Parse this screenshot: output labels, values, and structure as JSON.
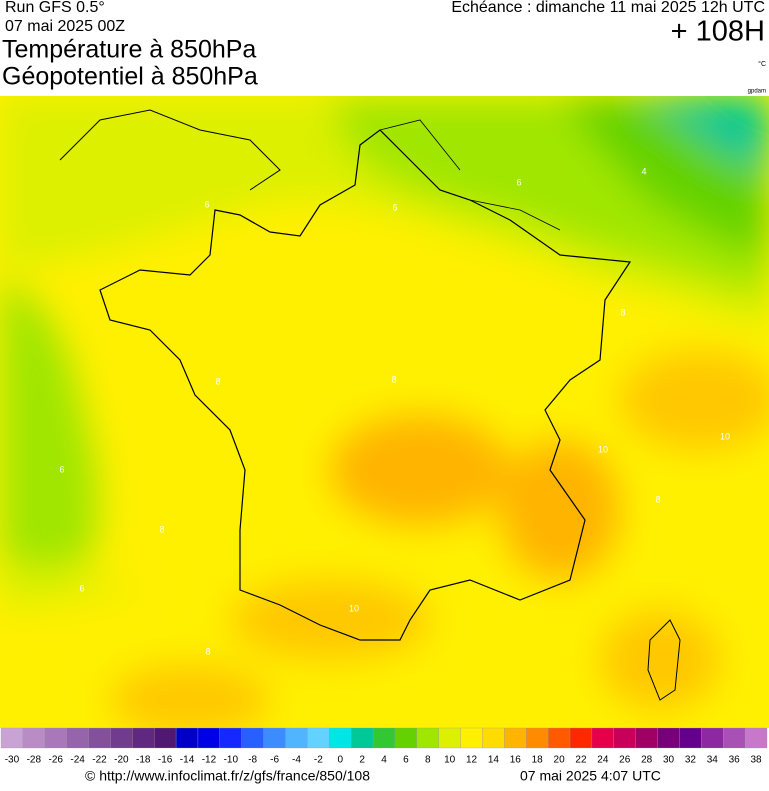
{
  "header": {
    "run": "Run GFS 0.5°",
    "run_date": "07 mai 2025 00Z",
    "valid": "Echéance : dimanche 11 mai 2025 12h UTC",
    "lead": "+ 108H",
    "title_1": "Température à 850hPa",
    "title_2": "Géopotentiel à 850hPa",
    "unit": "°C",
    "credit": "gpdam"
  },
  "map": {
    "contour_labels": [
      6,
      6,
      4,
      6,
      8,
      8,
      8,
      6,
      8,
      10,
      10,
      10,
      8,
      6,
      8
    ]
  },
  "scale": {
    "labels": [
      -30,
      -28,
      -26,
      -24,
      -22,
      -20,
      -18,
      -16,
      -14,
      -12,
      -10,
      -8,
      -6,
      -4,
      -2,
      0,
      2,
      4,
      6,
      8,
      10,
      12,
      14,
      16,
      18,
      20,
      22,
      24,
      26,
      28,
      30,
      32,
      34,
      36,
      38
    ],
    "colors": [
      "#c9a3d3",
      "#b98cc6",
      "#a878b8",
      "#9664aa",
      "#84509c",
      "#723c8e",
      "#602880",
      "#501870",
      "#0000c8",
      "#0000e6",
      "#1428ff",
      "#2860ff",
      "#3c8cff",
      "#50b4ff",
      "#64d2ff",
      "#00e6e6",
      "#00c896",
      "#32c832",
      "#64d200",
      "#a0e600",
      "#dcf000",
      "#fff000",
      "#ffdc00",
      "#ffb400",
      "#ff8c00",
      "#ff5a00",
      "#ff2800",
      "#e6004b",
      "#c8005a",
      "#a00064",
      "#780078",
      "#64008c",
      "#8c28a0",
      "#a850b4",
      "#c878c8"
    ]
  },
  "footer": {
    "url": "© http://www.infoclimat.fr/z/gfs/france/850/108",
    "generated": "07 mai 2025  4:07 UTC"
  }
}
